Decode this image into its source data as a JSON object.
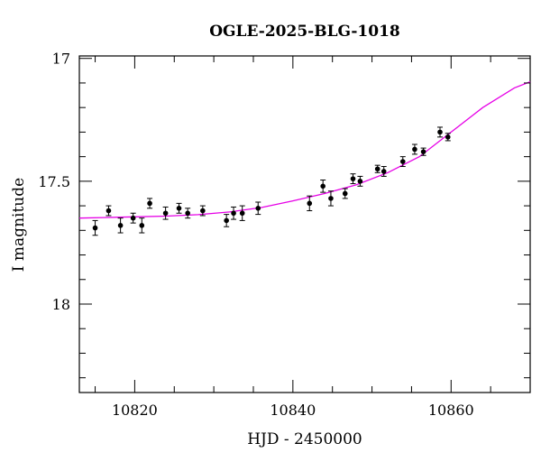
{
  "chart_data": {
    "type": "scatter",
    "title": "OGLE-2025-BLG-1018",
    "xlabel": "HJD - 2450000",
    "ylabel": "I magnitude",
    "xlim": [
      10813,
      10870
    ],
    "ylim": [
      18.36,
      16.99
    ],
    "y_inverted": true,
    "grid": false,
    "x_ticks": [
      10820,
      10840,
      10860
    ],
    "y_ticks": [
      17,
      17.5,
      18
    ],
    "x_tick_labels": [
      "10820",
      "10840",
      "10860"
    ],
    "y_tick_labels": [
      "17",
      "17.5",
      "18"
    ],
    "point_color": "#000000",
    "model_color": "#e600e6",
    "series": [
      {
        "kind": "points",
        "x": [
          10815,
          10816.7,
          10818.2,
          10819.8,
          10820.9,
          10821.9,
          10823.9,
          10825.6,
          10826.7,
          10828.6,
          10831.6,
          10832.5,
          10833.6,
          10835.6,
          10842.1,
          10843.8,
          10844.8,
          10846.6,
          10847.6,
          10848.5,
          10850.7,
          10851.5,
          10853.9,
          10855.4,
          10856.5,
          10858.6,
          10859.6
        ],
        "y": [
          17.69,
          17.62,
          17.68,
          17.65,
          17.68,
          17.59,
          17.63,
          17.61,
          17.63,
          17.62,
          17.66,
          17.63,
          17.63,
          17.61,
          17.59,
          17.52,
          17.57,
          17.55,
          17.49,
          17.5,
          17.45,
          17.46,
          17.42,
          17.37,
          17.38,
          17.3,
          17.32
        ],
        "err": [
          0.03,
          0.02,
          0.03,
          0.02,
          0.03,
          0.02,
          0.025,
          0.02,
          0.02,
          0.02,
          0.025,
          0.025,
          0.03,
          0.025,
          0.03,
          0.025,
          0.03,
          0.02,
          0.02,
          0.02,
          0.015,
          0.02,
          0.02,
          0.02,
          0.015,
          0.02,
          0.015
        ]
      },
      {
        "kind": "model",
        "x": [
          10813,
          10816,
          10820,
          10824,
          10828,
          10832,
          10836,
          10840,
          10844,
          10848,
          10852,
          10856,
          10860,
          10864,
          10868,
          10870
        ],
        "y": [
          17.65,
          17.648,
          17.645,
          17.642,
          17.636,
          17.625,
          17.607,
          17.58,
          17.55,
          17.515,
          17.465,
          17.4,
          17.3,
          17.2,
          17.12,
          17.095
        ]
      }
    ]
  }
}
